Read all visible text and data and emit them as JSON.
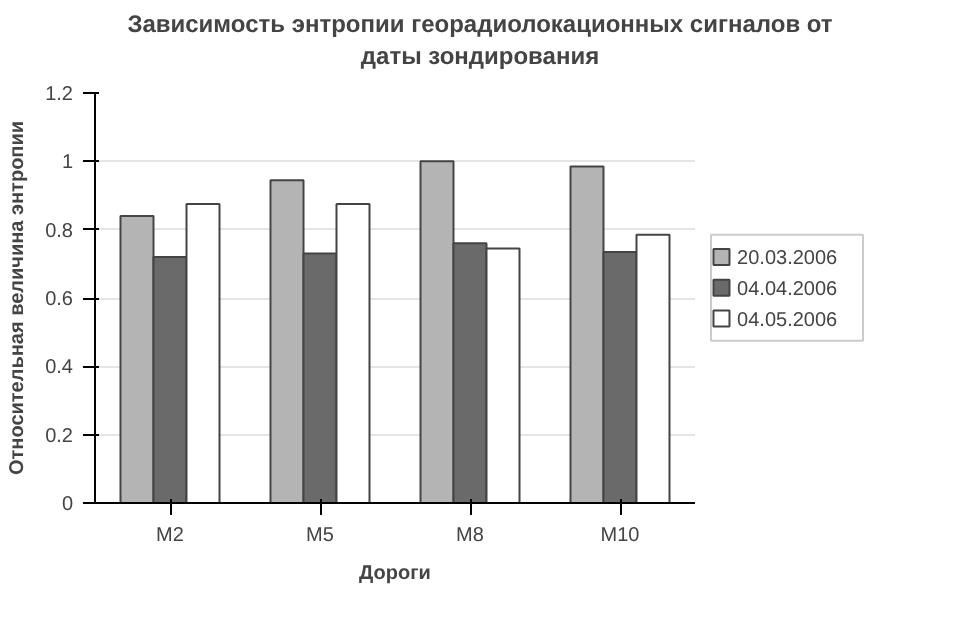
{
  "chart_data": {
    "type": "bar",
    "title": "Зависимость энтропии георадиолокационных сигналов от\nдаты зондирования",
    "xlabel": "Дороги",
    "ylabel": "Относительная величина энтропии",
    "categories": [
      "M2",
      "M5",
      "M8",
      "M10"
    ],
    "series": [
      {
        "name": "20.03.2006",
        "color": "#b4b4b4",
        "values": [
          0.84,
          0.945,
          1.0,
          0.985
        ]
      },
      {
        "name": "04.04.2006",
        "color": "#6a6a6a",
        "values": [
          0.72,
          0.73,
          0.76,
          0.735
        ]
      },
      {
        "name": "04.05.2006",
        "color": "#ffffff",
        "values": [
          0.875,
          0.875,
          0.745,
          0.785
        ]
      }
    ],
    "ylim": [
      0,
      1.2
    ],
    "yticks": [
      0,
      0.2,
      0.4,
      0.6,
      0.8,
      1,
      1.2
    ],
    "grid": "y",
    "legend": "right"
  }
}
